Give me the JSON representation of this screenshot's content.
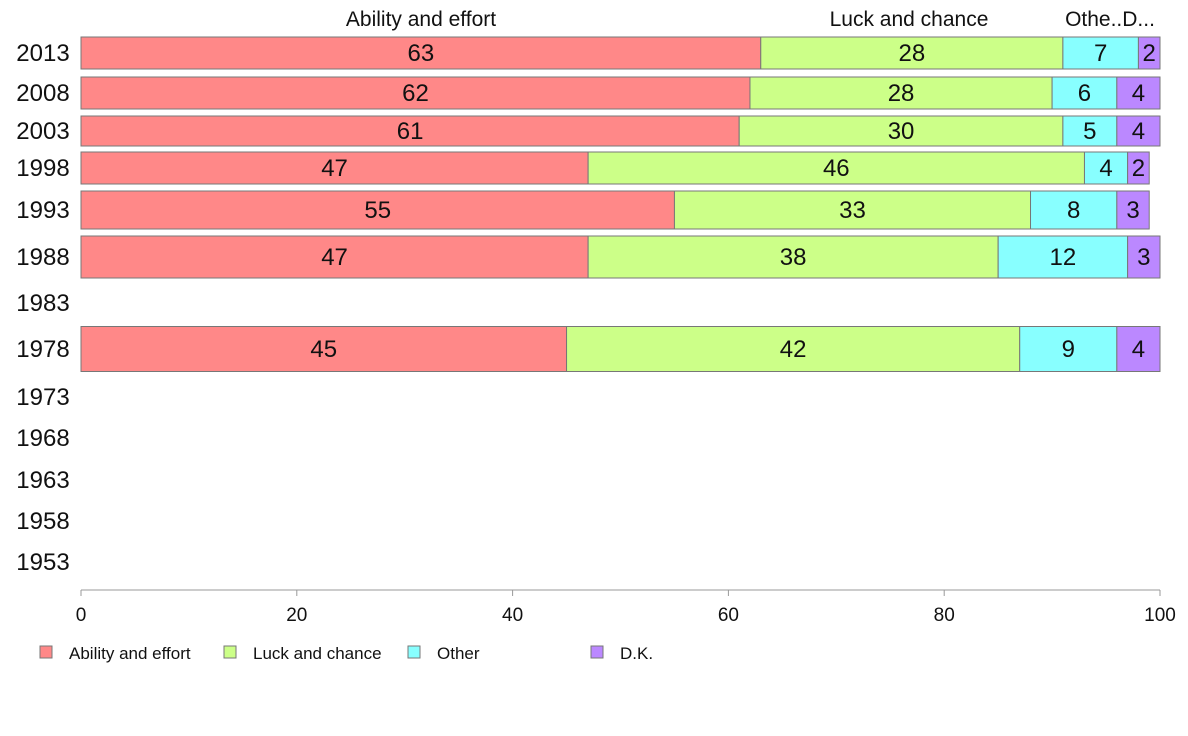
{
  "chart_data": {
    "type": "bar",
    "orientation": "horizontal",
    "stacked": true,
    "title": "",
    "xlabel": "",
    "ylabel": "",
    "xlim": [
      0,
      100
    ],
    "x_ticks": [
      0,
      20,
      40,
      60,
      80,
      100
    ],
    "grid": false,
    "legend_position": "bottom-left",
    "column_headers": [
      "Ability and effort",
      "Luck and chance",
      "Othe..D..."
    ],
    "categories": [
      "2013",
      "2008",
      "2003",
      "1998",
      "1993",
      "1988",
      "1983",
      "1978",
      "1973",
      "1968",
      "1963",
      "1958",
      "1953"
    ],
    "series": [
      {
        "name": "Ability and effort",
        "color": "#ff8888",
        "values": [
          63,
          62,
          61,
          47,
          55,
          47,
          null,
          45,
          null,
          null,
          null,
          null,
          null
        ]
      },
      {
        "name": "Luck and chance",
        "color": "#ccff88",
        "values": [
          28,
          28,
          30,
          46,
          33,
          38,
          null,
          42,
          null,
          null,
          null,
          null,
          null
        ]
      },
      {
        "name": "Other",
        "color": "#88ffff",
        "values": [
          7,
          6,
          5,
          4,
          8,
          12,
          null,
          9,
          null,
          null,
          null,
          null,
          null
        ]
      },
      {
        "name": "D.K.",
        "color": "#bb88ff",
        "values": [
          2,
          4,
          4,
          2,
          3,
          3,
          null,
          4,
          null,
          null,
          null,
          null,
          null
        ]
      }
    ]
  }
}
